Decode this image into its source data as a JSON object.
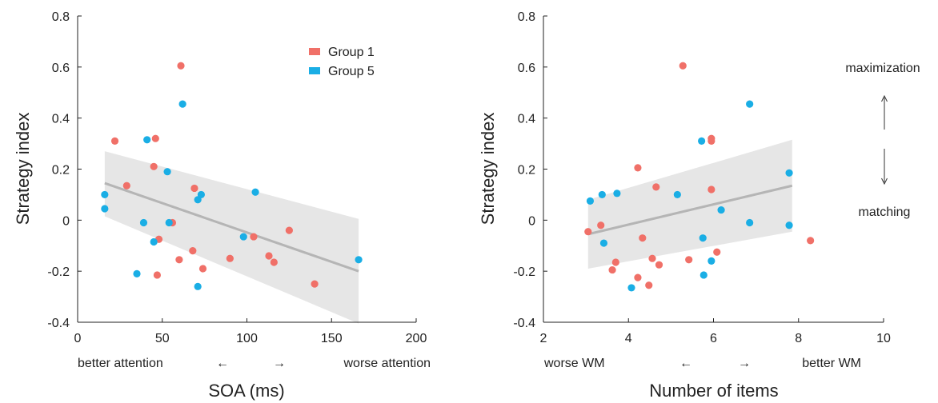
{
  "colors": {
    "group1": "#f07068",
    "group5": "#1aaee5",
    "fit": "#b5b5b5",
    "band": "#e6e6e6",
    "axis": "#222222"
  },
  "legend": {
    "placement": "top-right of left panel",
    "items": [
      {
        "label": "Group 1",
        "color": "#f07068"
      },
      {
        "label": "Group 5",
        "color": "#1aaee5"
      }
    ]
  },
  "chart_data": [
    {
      "type": "scatter",
      "xlabel": "SOA (ms)",
      "ylabel": "Strategy index",
      "xlim": [
        0,
        200
      ],
      "ylim": [
        -0.4,
        0.8
      ],
      "xticks": [
        "0",
        "50",
        "100",
        "150",
        "200"
      ],
      "yticks": [
        "-0.4",
        "-0.2",
        "0",
        "0.2",
        "0.4",
        "0.6",
        "0.8"
      ],
      "grid": false,
      "annotations": {
        "left": "better attention",
        "right": "worse attention",
        "left_arrow": "←",
        "right_arrow": "→"
      },
      "fit": {
        "x": [
          16,
          166
        ],
        "y": [
          0.145,
          -0.2
        ],
        "band_upper": [
          0.27,
          0.005
        ],
        "band_lower": [
          0.015,
          -0.405
        ]
      },
      "series": [
        {
          "name": "Group 1",
          "color": "#f07068",
          "points": [
            [
              22,
              0.31
            ],
            [
              29,
              0.135
            ],
            [
              45,
              0.21
            ],
            [
              46,
              0.32
            ],
            [
              47,
              -0.215
            ],
            [
              48,
              -0.075
            ],
            [
              56,
              -0.01
            ],
            [
              60,
              -0.155
            ],
            [
              61,
              0.605
            ],
            [
              68,
              -0.12
            ],
            [
              69,
              0.125
            ],
            [
              74,
              -0.19
            ],
            [
              90,
              -0.15
            ],
            [
              104,
              -0.065
            ],
            [
              113,
              -0.14
            ],
            [
              116,
              -0.165
            ],
            [
              125,
              -0.04
            ],
            [
              140,
              -0.25
            ]
          ]
        },
        {
          "name": "Group 5",
          "color": "#1aaee5",
          "points": [
            [
              16,
              0.1
            ],
            [
              16,
              0.045
            ],
            [
              35,
              -0.21
            ],
            [
              39,
              -0.01
            ],
            [
              41,
              0.315
            ],
            [
              45,
              -0.085
            ],
            [
              53,
              0.19
            ],
            [
              54,
              -0.01
            ],
            [
              62,
              0.455
            ],
            [
              71,
              0.08
            ],
            [
              71,
              -0.26
            ],
            [
              73,
              0.1
            ],
            [
              98,
              -0.065
            ],
            [
              105,
              0.11
            ],
            [
              166,
              -0.155
            ]
          ]
        }
      ]
    },
    {
      "type": "scatter",
      "xlabel": "Number of items",
      "ylabel": "Strategy index",
      "xlim": [
        2,
        10
      ],
      "ylim": [
        -0.4,
        0.8
      ],
      "xticks": [
        "2",
        "4",
        "6",
        "8",
        "10"
      ],
      "yticks": [
        "-0.4",
        "-0.2",
        "0",
        "0.2",
        "0.4",
        "0.6",
        "0.8"
      ],
      "grid": false,
      "annotations": {
        "left": "worse WM",
        "right": "better WM",
        "left_arrow": "←",
        "right_arrow": "→",
        "top": "maximization",
        "bottom": "matching"
      },
      "fit": {
        "x": [
          3.05,
          7.85
        ],
        "y": [
          -0.055,
          0.135
        ],
        "band_upper": [
          0.08,
          0.315
        ],
        "band_lower": [
          -0.19,
          -0.045
        ]
      },
      "series": [
        {
          "name": "Group 1",
          "color": "#f07068",
          "points": [
            [
              3.05,
              -0.045
            ],
            [
              3.35,
              -0.02
            ],
            [
              3.62,
              -0.195
            ],
            [
              3.7,
              -0.165
            ],
            [
              4.22,
              -0.225
            ],
            [
              4.22,
              0.205
            ],
            [
              4.33,
              -0.07
            ],
            [
              4.48,
              -0.255
            ],
            [
              4.56,
              -0.15
            ],
            [
              4.65,
              0.13
            ],
            [
              4.72,
              -0.175
            ],
            [
              5.28,
              0.605
            ],
            [
              5.42,
              -0.155
            ],
            [
              5.95,
              0.32
            ],
            [
              5.95,
              0.31
            ],
            [
              5.95,
              0.12
            ],
            [
              6.08,
              -0.125
            ],
            [
              8.28,
              -0.08
            ]
          ]
        },
        {
          "name": "Group 5",
          "color": "#1aaee5",
          "points": [
            [
              3.1,
              0.075
            ],
            [
              3.38,
              0.1
            ],
            [
              3.42,
              -0.09
            ],
            [
              3.73,
              0.105
            ],
            [
              4.07,
              -0.265
            ],
            [
              5.15,
              0.1
            ],
            [
              5.72,
              0.31
            ],
            [
              5.75,
              -0.07
            ],
            [
              5.77,
              -0.215
            ],
            [
              5.95,
              -0.16
            ],
            [
              6.18,
              0.04
            ],
            [
              6.85,
              0.455
            ],
            [
              6.85,
              -0.01
            ],
            [
              7.78,
              0.185
            ],
            [
              7.78,
              -0.02
            ]
          ]
        }
      ]
    }
  ]
}
